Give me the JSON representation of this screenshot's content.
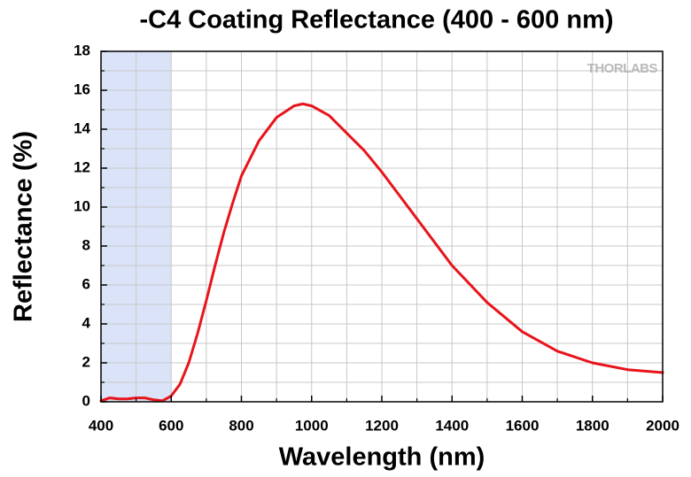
{
  "chart_data": {
    "type": "line",
    "title": "-C4 Coating Reflectance (400 - 600 nm)",
    "x_label": "Wavelength (nm)",
    "y_label": "Reflectance (%)",
    "watermark": "THORLABS",
    "xlim": [
      400,
      2000
    ],
    "ylim": [
      0,
      18
    ],
    "xticks": [
      400,
      600,
      800,
      1000,
      1200,
      1400,
      1600,
      1800,
      2000
    ],
    "yticks": [
      0,
      2,
      4,
      6,
      8,
      10,
      12,
      14,
      16,
      18
    ],
    "xminorticks": [
      500,
      700,
      900,
      1100,
      1300,
      1500,
      1700,
      1900
    ],
    "yminorticks": [
      1,
      3,
      5,
      7,
      9,
      11,
      13,
      15,
      17
    ],
    "grid": true,
    "shaded_region": {
      "x": [
        400,
        600
      ],
      "color": "#dae3f7"
    },
    "series": [
      {
        "color": "#e8141b",
        "x": [
          400,
          425,
          450,
          475,
          500,
          525,
          550,
          575,
          600,
          625,
          650,
          675,
          700,
          725,
          750,
          775,
          800,
          850,
          900,
          950,
          975,
          1000,
          1050,
          1100,
          1150,
          1200,
          1300,
          1400,
          1500,
          1600,
          1700,
          1800,
          1900,
          2000
        ],
        "values": [
          0.05,
          0.2,
          0.15,
          0.15,
          0.2,
          0.2,
          0.1,
          0.05,
          0.3,
          0.9,
          2.0,
          3.5,
          5.2,
          7.0,
          8.7,
          10.2,
          11.6,
          13.4,
          14.6,
          15.2,
          15.3,
          15.2,
          14.7,
          13.8,
          12.9,
          11.8,
          9.4,
          7.0,
          5.1,
          3.6,
          2.6,
          2.0,
          1.65,
          1.5
        ]
      }
    ]
  }
}
